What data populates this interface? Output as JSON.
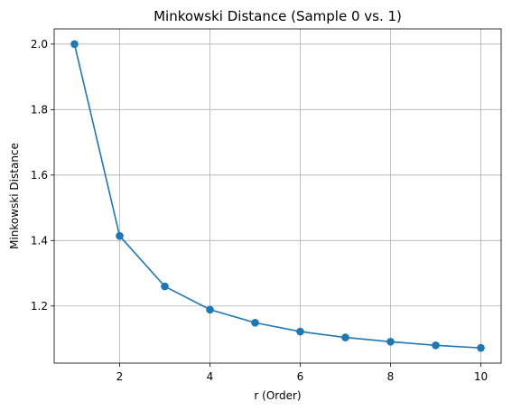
{
  "chart_data": {
    "type": "line",
    "title": "Minkowski Distance (Sample 0 vs. 1)",
    "xlabel": "r (Order)",
    "ylabel": "Minkowski Distance",
    "x": [
      1,
      2,
      3,
      4,
      5,
      6,
      7,
      8,
      9,
      10
    ],
    "series": [
      {
        "values": [
          2.0,
          1.414,
          1.26,
          1.189,
          1.149,
          1.122,
          1.104,
          1.091,
          1.08,
          1.072
        ],
        "color": "#1f77b4",
        "marker": "circle"
      }
    ],
    "xlim": [
      0.55,
      10.45
    ],
    "ylim": [
      1.0256,
      2.0464
    ],
    "xticks": [
      2,
      4,
      6,
      8,
      10
    ],
    "xtick_labels": [
      "2",
      "4",
      "6",
      "8",
      "10"
    ],
    "yticks": [
      1.2,
      1.4,
      1.6,
      1.8,
      2.0
    ],
    "ytick_labels": [
      "1.2",
      "1.4",
      "1.6",
      "1.8",
      "2.0"
    ],
    "grid": true
  }
}
